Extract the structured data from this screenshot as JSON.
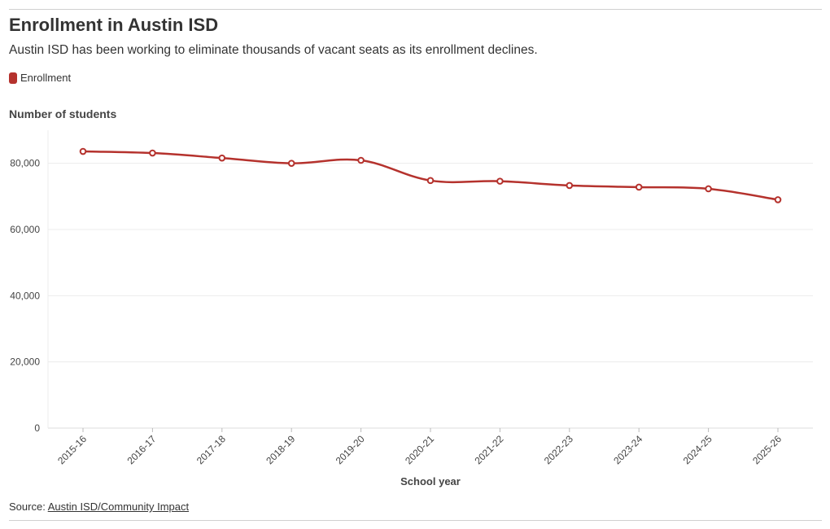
{
  "title": "Enrollment in Austin ISD",
  "subtitle": "Austin ISD has been working to eliminate thousands of vacant seats as its enrollment declines.",
  "legend": {
    "label": "Enrollment"
  },
  "source": {
    "prefix": "Source: ",
    "link_text": "Austin ISD/Community Impact"
  },
  "colors": {
    "series": "#b5322d",
    "grid": "#ececec",
    "axis": "#dddddd"
  },
  "chart_data": {
    "type": "line",
    "title": "Enrollment in Austin ISD",
    "ylabel": "Number of students",
    "xlabel": "School year",
    "categories": [
      "2015-16",
      "2016-17",
      "2017-18",
      "2018-19",
      "2019-20",
      "2020-21",
      "2021-22",
      "2022-23",
      "2023-24",
      "2024-25",
      "2025-26"
    ],
    "series": [
      {
        "name": "Enrollment",
        "values": [
          83600,
          83100,
          81600,
          80000,
          80900,
          74800,
          74600,
          73300,
          72800,
          72300,
          69000
        ]
      }
    ],
    "ylim": [
      0,
      90000
    ],
    "yticks": [
      0,
      20000,
      40000,
      60000,
      80000
    ],
    "ytick_labels": [
      "0",
      "20,000",
      "40,000",
      "60,000",
      "80,000"
    ],
    "grid": true,
    "legend_position": "top-left"
  }
}
